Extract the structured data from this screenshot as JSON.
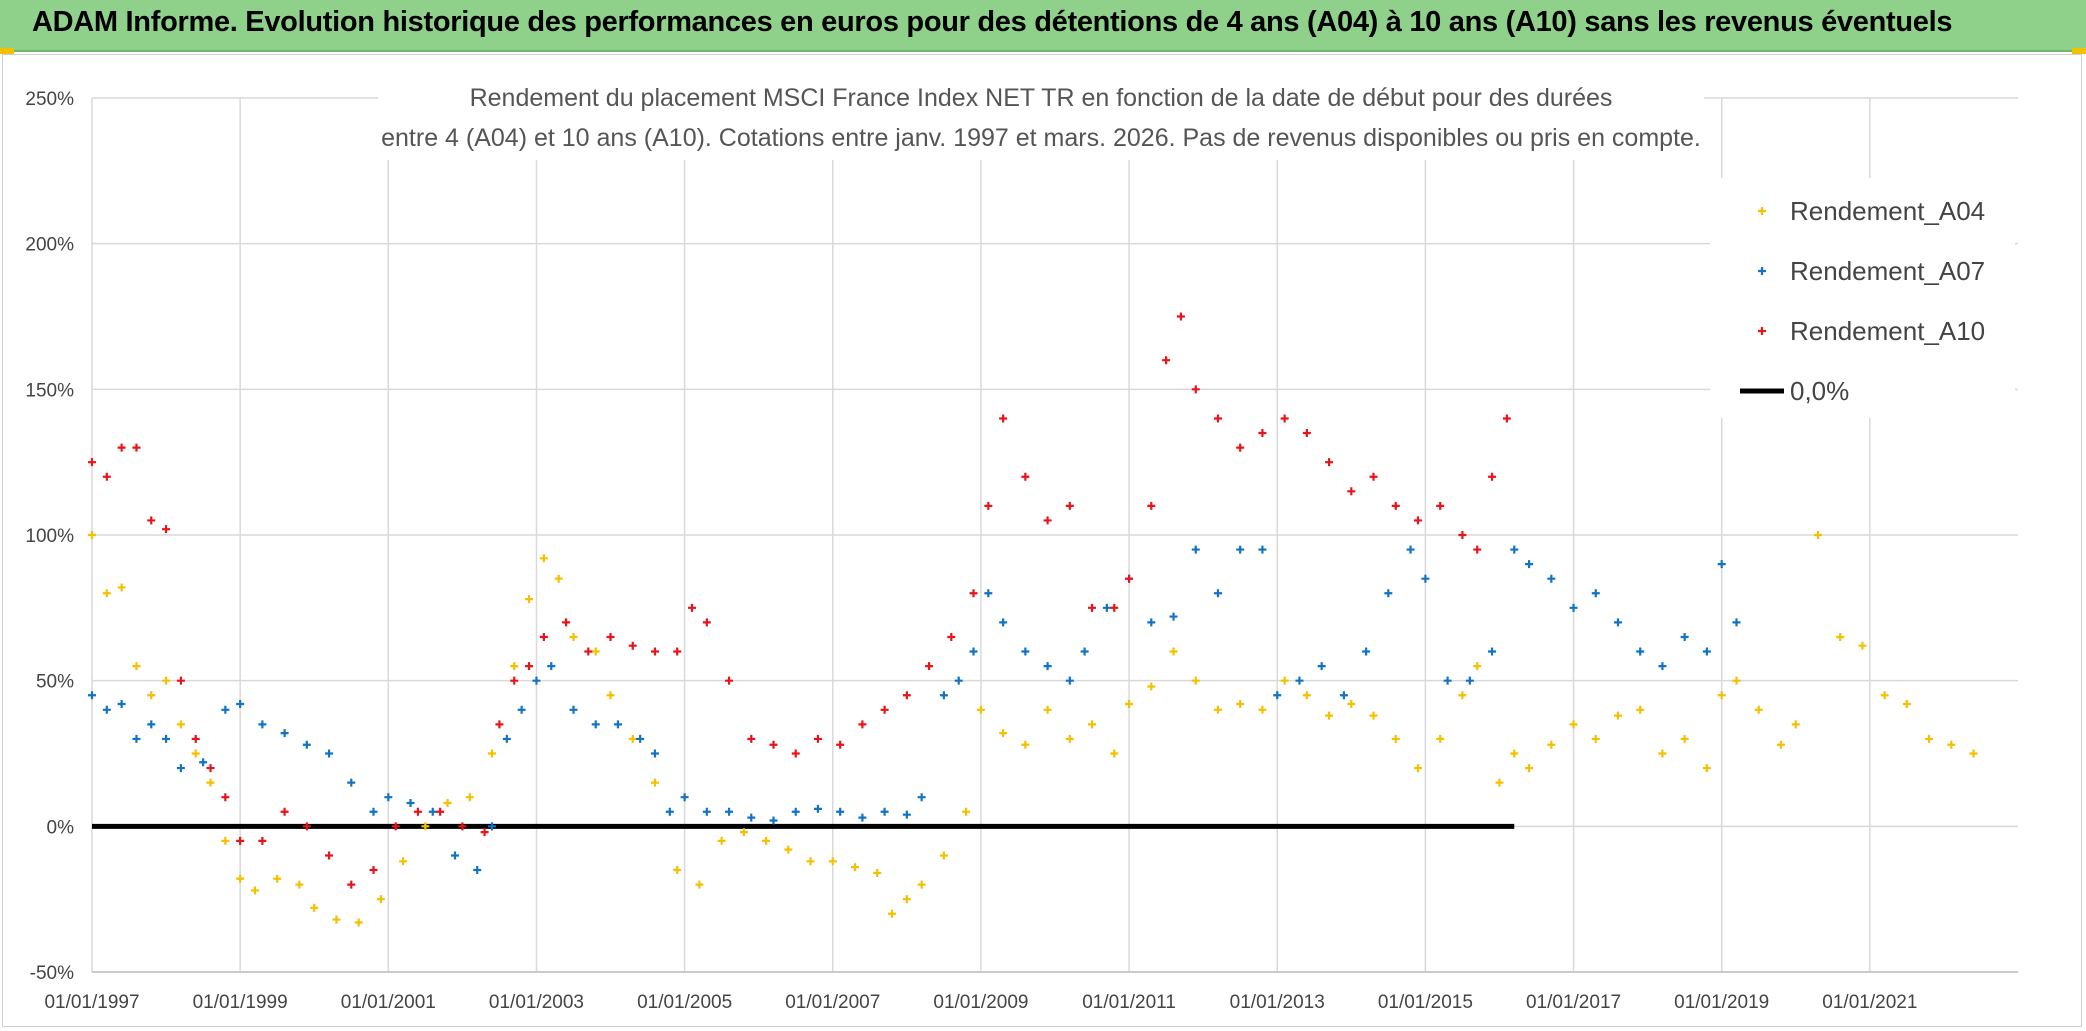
{
  "banner": {
    "title": "ADAM Informe. Evolution historique des performances en euros pour des détentions de 4 ans (A04) à 10 ans (A10) sans les revenus éventuels"
  },
  "chart_data": {
    "type": "scatter",
    "title_line1": "Rendement du placement MSCI France Index NET TR en fonction de la date de début pour des durées",
    "title_line2": "entre 4 (A04) et 10 ans (A10). Cotations entre janv. 1997 et mars. 2026. Pas de revenus disponibles ou pris en compte.",
    "xlabel": "",
    "ylabel": "",
    "xlim": [
      1997.0,
      2023.0
    ],
    "ylim": [
      -0.5,
      2.5
    ],
    "y_ticks": [
      "-50%",
      "0%",
      "50%",
      "100%",
      "150%",
      "200%",
      "250%"
    ],
    "y_tick_values": [
      -0.5,
      0,
      0.5,
      1.0,
      1.5,
      2.0,
      2.5
    ],
    "x_ticks": [
      "01/01/1997",
      "01/01/1999",
      "01/01/2001",
      "01/01/2003",
      "01/01/2005",
      "01/01/2007",
      "01/01/2009",
      "01/01/2011",
      "01/01/2013",
      "01/01/2015",
      "01/01/2017",
      "01/01/2019",
      "01/01/2021"
    ],
    "x_tick_values": [
      1997,
      1999,
      2001,
      2003,
      2005,
      2007,
      2009,
      2011,
      2013,
      2015,
      2017,
      2019,
      2021
    ],
    "grid": true,
    "legend_position": "top-right",
    "series": [
      {
        "name": "Rendement_A04",
        "color": "#f5c000",
        "marker": "plus",
        "x": [
          1997.0,
          1997.2,
          1997.4,
          1997.6,
          1997.8,
          1998.0,
          1998.2,
          1998.4,
          1998.6,
          1998.8,
          1999.0,
          1999.2,
          1999.5,
          1999.8,
          2000.0,
          2000.3,
          2000.6,
          2000.9,
          2001.2,
          2001.5,
          2001.8,
          2002.1,
          2002.4,
          2002.7,
          2002.9,
          2003.1,
          2003.3,
          2003.5,
          2003.8,
          2004.0,
          2004.3,
          2004.6,
          2004.9,
          2005.2,
          2005.5,
          2005.8,
          2006.1,
          2006.4,
          2006.7,
          2007.0,
          2007.3,
          2007.6,
          2007.8,
          2008.0,
          2008.2,
          2008.5,
          2008.8,
          2009.0,
          2009.3,
          2009.6,
          2009.9,
          2010.2,
          2010.5,
          2010.8,
          2011.0,
          2011.3,
          2011.6,
          2011.9,
          2012.2,
          2012.5,
          2012.8,
          2013.1,
          2013.4,
          2013.7,
          2014.0,
          2014.3,
          2014.6,
          2014.9,
          2015.2,
          2015.5,
          2015.7,
          2016.0,
          2016.2,
          2016.4,
          2016.7,
          2017.0,
          2017.3,
          2017.6,
          2017.9,
          2018.2,
          2018.5,
          2018.8,
          2019.0,
          2019.2,
          2019.5,
          2019.8,
          2020.0,
          2020.3,
          2020.6,
          2020.9,
          2021.2,
          2021.5,
          2021.8,
          2022.1,
          2022.4
        ],
        "y": [
          1.0,
          0.8,
          0.82,
          0.55,
          0.45,
          0.5,
          0.35,
          0.25,
          0.15,
          -0.05,
          -0.18,
          -0.22,
          -0.18,
          -0.2,
          -0.28,
          -0.32,
          -0.33,
          -0.25,
          -0.12,
          0.0,
          0.08,
          0.1,
          0.25,
          0.55,
          0.78,
          0.92,
          0.85,
          0.65,
          0.6,
          0.45,
          0.3,
          0.15,
          -0.15,
          -0.2,
          -0.05,
          -0.02,
          -0.05,
          -0.08,
          -0.12,
          -0.12,
          -0.14,
          -0.16,
          -0.3,
          -0.25,
          -0.2,
          -0.1,
          0.05,
          0.4,
          0.32,
          0.28,
          0.4,
          0.3,
          0.35,
          0.25,
          0.42,
          0.48,
          0.6,
          0.5,
          0.4,
          0.42,
          0.4,
          0.5,
          0.45,
          0.38,
          0.42,
          0.38,
          0.3,
          0.2,
          0.3,
          0.45,
          0.55,
          0.15,
          0.25,
          0.2,
          0.28,
          0.35,
          0.3,
          0.38,
          0.4,
          0.25,
          0.3,
          0.2,
          0.45,
          0.5,
          0.4,
          0.28,
          0.35,
          1.0,
          0.65,
          0.62,
          0.45,
          0.42,
          0.3,
          0.28,
          0.25
        ]
      },
      {
        "name": "Rendement_A07",
        "color": "#1273c4",
        "marker": "plus",
        "x": [
          1997.0,
          1997.2,
          1997.4,
          1997.6,
          1997.8,
          1998.0,
          1998.2,
          1998.5,
          1998.8,
          1999.0,
          1999.3,
          1999.6,
          1999.9,
          2000.2,
          2000.5,
          2000.8,
          2001.0,
          2001.3,
          2001.6,
          2001.9,
          2002.2,
          2002.4,
          2002.6,
          2002.8,
          2003.0,
          2003.2,
          2003.5,
          2003.8,
          2004.1,
          2004.4,
          2004.6,
          2004.8,
          2005.0,
          2005.3,
          2005.6,
          2005.9,
          2006.2,
          2006.5,
          2006.8,
          2007.1,
          2007.4,
          2007.7,
          2008.0,
          2008.2,
          2008.5,
          2008.7,
          2008.9,
          2009.1,
          2009.3,
          2009.6,
          2009.9,
          2010.2,
          2010.4,
          2010.7,
          2011.0,
          2011.3,
          2011.6,
          2011.9,
          2012.2,
          2012.5,
          2012.8,
          2013.0,
          2013.3,
          2013.6,
          2013.9,
          2014.2,
          2014.5,
          2014.8,
          2015.0,
          2015.3,
          2015.6,
          2015.9,
          2016.2,
          2016.4,
          2016.7,
          2017.0,
          2017.3,
          2017.6,
          2017.9,
          2018.2,
          2018.5,
          2018.8,
          2019.0,
          2019.2
        ],
        "y": [
          0.45,
          0.4,
          0.42,
          0.3,
          0.35,
          0.3,
          0.2,
          0.22,
          0.4,
          0.42,
          0.35,
          0.32,
          0.28,
          0.25,
          0.15,
          0.05,
          0.1,
          0.08,
          0.05,
          -0.1,
          -0.15,
          0.0,
          0.3,
          0.4,
          0.5,
          0.55,
          0.4,
          0.35,
          0.35,
          0.3,
          0.25,
          0.05,
          0.1,
          0.05,
          0.05,
          0.03,
          0.02,
          0.05,
          0.06,
          0.05,
          0.03,
          0.05,
          0.04,
          0.1,
          0.45,
          0.5,
          0.6,
          0.8,
          0.7,
          0.6,
          0.55,
          0.5,
          0.6,
          0.75,
          0.85,
          0.7,
          0.72,
          0.95,
          0.8,
          0.95,
          0.95,
          0.45,
          0.5,
          0.55,
          0.45,
          0.6,
          0.8,
          0.95,
          0.85,
          0.5,
          0.5,
          0.6,
          0.95,
          0.9,
          0.85,
          0.75,
          0.8,
          0.7,
          0.6,
          0.55,
          0.65,
          0.6,
          0.9,
          0.7
        ]
      },
      {
        "name": "Rendement_A10",
        "color": "#e8141b",
        "marker": "plus",
        "x": [
          1997.0,
          1997.2,
          1997.4,
          1997.6,
          1997.8,
          1998.0,
          1998.2,
          1998.4,
          1998.6,
          1998.8,
          1999.0,
          1999.3,
          1999.6,
          1999.9,
          2000.2,
          2000.5,
          2000.8,
          2001.1,
          2001.4,
          2001.7,
          2002.0,
          2002.3,
          2002.5,
          2002.7,
          2002.9,
          2003.1,
          2003.4,
          2003.7,
          2004.0,
          2004.3,
          2004.6,
          2004.9,
          2005.1,
          2005.3,
          2005.6,
          2005.9,
          2006.2,
          2006.5,
          2006.8,
          2007.1,
          2007.4,
          2007.7,
          2008.0,
          2008.3,
          2008.6,
          2008.9,
          2009.1,
          2009.3,
          2009.6,
          2009.9,
          2010.2,
          2010.5,
          2010.8,
          2011.0,
          2011.3,
          2011.5,
          2011.7,
          2011.9,
          2012.2,
          2012.5,
          2012.8,
          2013.1,
          2013.4,
          2013.7,
          2014.0,
          2014.3,
          2014.6,
          2014.9,
          2015.2,
          2015.5,
          2015.7,
          2015.9,
          2016.1
        ],
        "y": [
          1.25,
          1.2,
          1.3,
          1.3,
          1.05,
          1.02,
          0.5,
          0.3,
          0.2,
          0.1,
          -0.05,
          -0.05,
          0.05,
          0.0,
          -0.1,
          -0.2,
          -0.15,
          0.0,
          0.05,
          0.05,
          0.0,
          -0.02,
          0.35,
          0.5,
          0.55,
          0.65,
          0.7,
          0.6,
          0.65,
          0.62,
          0.6,
          0.6,
          0.75,
          0.7,
          0.5,
          0.3,
          0.28,
          0.25,
          0.3,
          0.28,
          0.35,
          0.4,
          0.45,
          0.55,
          0.65,
          0.8,
          1.1,
          1.4,
          1.2,
          1.05,
          1.1,
          0.75,
          0.75,
          0.85,
          1.1,
          1.6,
          1.75,
          1.5,
          1.4,
          1.3,
          1.35,
          1.4,
          1.35,
          1.25,
          1.15,
          1.2,
          1.1,
          1.05,
          1.1,
          1.0,
          0.95,
          1.2,
          1.4
        ]
      },
      {
        "name": "0,0%",
        "color": "#000000",
        "marker": "line",
        "x": [
          1997.0,
          2016.2
        ],
        "y": [
          0,
          0
        ]
      }
    ]
  }
}
